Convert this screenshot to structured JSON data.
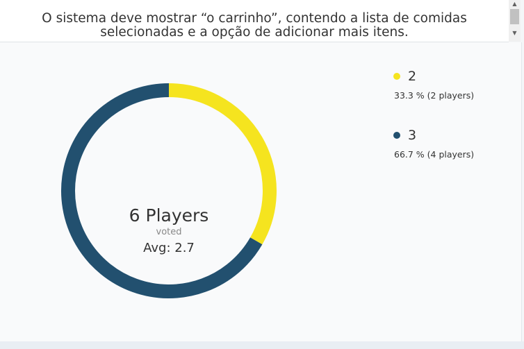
{
  "header": {
    "text_line1": "O sistema deve mostrar “o carrinho”, contendo a lista de comidas",
    "text_line2": "selecionadas e a opção de adicionar mais itens."
  },
  "chart_data": {
    "type": "pie",
    "variant": "donut",
    "center": {
      "players": "6 Players",
      "voted": "voted",
      "avg": "Avg: 2.7"
    },
    "slices": [
      {
        "label": "2",
        "percent": 33.3,
        "players": 2,
        "detail": "33.3 % (2 players)",
        "color": "#f5e41f"
      },
      {
        "label": "3",
        "percent": 66.7,
        "players": 4,
        "detail": "66.7 % (4 players)",
        "color": "#22506f"
      }
    ]
  }
}
